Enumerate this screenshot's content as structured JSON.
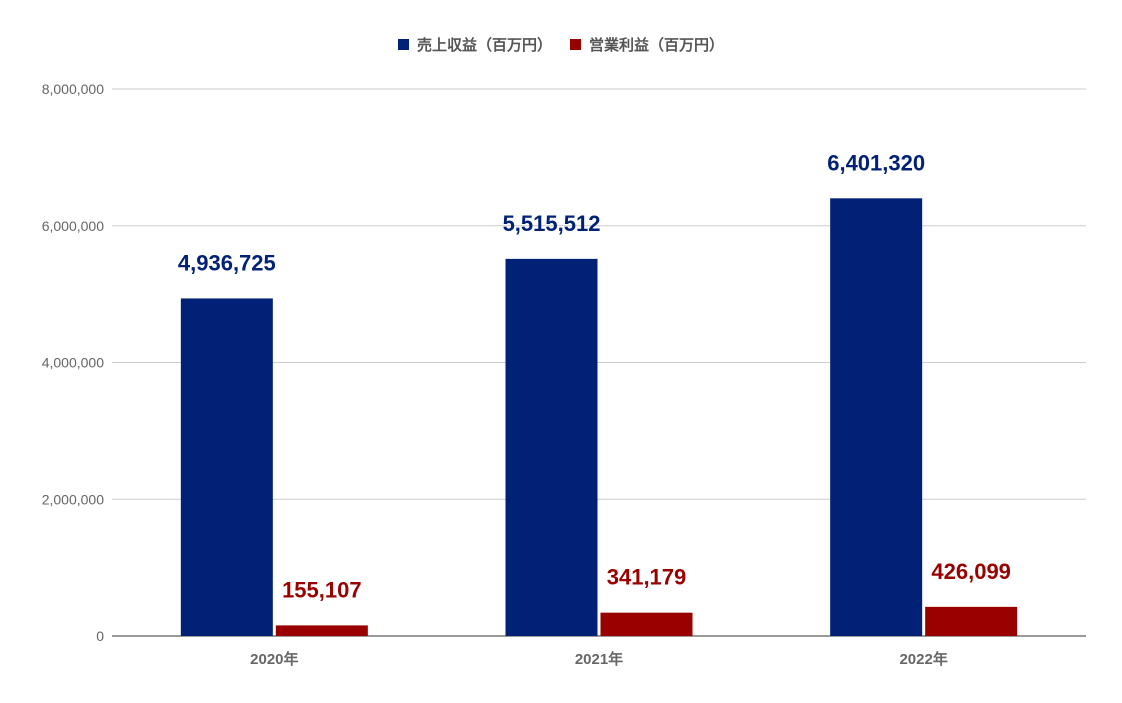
{
  "chart_data": {
    "type": "bar",
    "categories": [
      "2020年",
      "2021年",
      "2022年"
    ],
    "series": [
      {
        "name": "売上収益（百万円）",
        "color": "#002176",
        "values": [
          4936725,
          5515512,
          6401320
        ],
        "labels": [
          "4,936,725",
          "5,515,512",
          "6,401,320"
        ]
      },
      {
        "name": "営業利益（百万円）",
        "color": "#990000",
        "values": [
          155107,
          341179,
          426099
        ],
        "labels": [
          "155,107",
          "341,179",
          "426,099"
        ]
      }
    ],
    "ylim": [
      0,
      8000000
    ],
    "yticks": [
      0,
      2000000,
      4000000,
      6000000,
      8000000
    ],
    "ytick_labels": [
      "0",
      "2,000,000",
      "4,000,000",
      "6,000,000",
      "8,000,000"
    ],
    "grid": true,
    "legend": "top-center"
  }
}
